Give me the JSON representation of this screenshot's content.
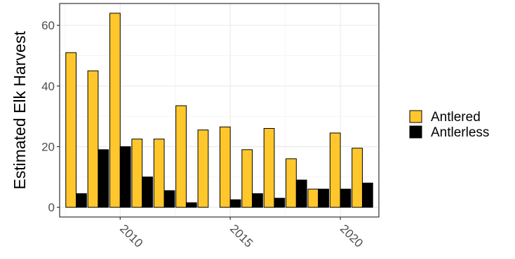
{
  "chart_data": {
    "type": "bar",
    "title": "",
    "xlabel": "",
    "ylabel": "Estimated Elk Harvest",
    "x": [
      2008,
      2009,
      2010,
      2011,
      2012,
      2013,
      2014,
      2015,
      2016,
      2017,
      2018,
      2019,
      2020,
      2021
    ],
    "series": [
      {
        "name": "Antlered",
        "color": "#FFC72C",
        "values": [
          51,
          45,
          64,
          22.5,
          22.5,
          33.5,
          25.5,
          26.5,
          19,
          26,
          16,
          6,
          24.5,
          19.5
        ]
      },
      {
        "name": "Antlerless",
        "color": "#000000",
        "values": [
          4.5,
          19,
          20,
          10,
          5.5,
          1.5,
          0,
          2.5,
          4.5,
          3,
          9,
          6,
          6,
          8
        ]
      }
    ],
    "xticks": [
      "2010",
      "2015",
      "2020"
    ],
    "yticks": [
      "0",
      "20",
      "40",
      "60"
    ],
    "xlim": [
      2007.25,
      2021.75
    ],
    "ylim": [
      -3.2,
      67.2
    ],
    "grid": true,
    "legend_position": "right",
    "legend": [
      "Antlered",
      "Antlerless"
    ]
  }
}
